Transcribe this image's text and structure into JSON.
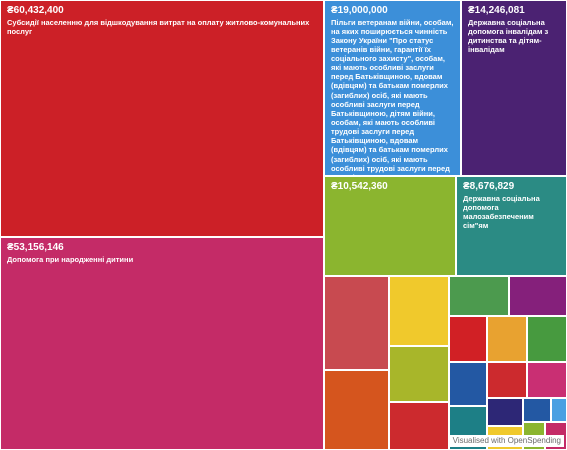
{
  "chart_data": {
    "type": "treemap",
    "nodes": [
      {
        "value_label": "₴60,432,400",
        "label": "Субсидії населенню для відшкодування витрат на оплату житлово-комунальних послуг",
        "color": "#cc2027"
      },
      {
        "value_label": "₴53,156,146",
        "label": "Допомога при народженні дитини",
        "color": "#c42b67"
      },
      {
        "value_label": "₴19,000,000",
        "label": "Пільги ветеранам війни, особам, на яких поширюється чинність Закону України \"Про статус ветеранів війни, гарантії їх соціального захисту\", особам, які мають особливі заслуги перед Батьківщиною, вдовам (вдівцям) та батькам померлих (загиблих) осіб, які мають особливі заслуги перед Батьківщиною, дітям війни, особам, які мають особливі трудові заслуги перед Батьківщиною, вдовам (вдівцям) та батькам померлих (загиблих) осіб, які мають особливі трудові заслуги перед Батьківщиною, жертвам нацистських переслідувань та реабілітованим громадянам, які стали інвалідами внаслідок репресій, або є пенсіонерами, на житлово-комунальні послуги",
        "color": "#3c8fd9"
      },
      {
        "value_label": "₴14,246,081",
        "label": "Державна соціальна допомога інвалідам з дитинства та дітям-інвалідам",
        "color": "#4b2272"
      },
      {
        "value_label": "₴10,542,360",
        "label": "",
        "color": "#8bb52f"
      },
      {
        "value_label": "₴8,676,829",
        "label": "Державна соціальна допомога малозабезпеченим сім\"ям",
        "color": "#2b8b84"
      },
      {
        "value_label": "",
        "label": "",
        "color": "#c84a50"
      },
      {
        "value_label": "",
        "label": "",
        "color": "#f0c92c"
      },
      {
        "value_label": "",
        "label": "",
        "color": "#4c9a4e"
      },
      {
        "value_label": "",
        "label": "",
        "color": "#85207b"
      },
      {
        "value_label": "",
        "label": "",
        "color": "#e8a230"
      },
      {
        "value_label": "",
        "label": "",
        "color": "#d12025"
      },
      {
        "value_label": "",
        "label": "",
        "color": "#479a3f"
      },
      {
        "value_label": "",
        "label": "",
        "color": "#c92f73"
      },
      {
        "value_label": "",
        "label": "",
        "color": "#d5551e"
      },
      {
        "value_label": "",
        "label": "",
        "color": "#a8b62a"
      },
      {
        "value_label": "",
        "label": "",
        "color": "#cc2a2e"
      },
      {
        "value_label": "",
        "label": "",
        "color": "#2358a3"
      },
      {
        "value_label": "",
        "label": "",
        "color": "#cc2a2e"
      },
      {
        "value_label": "",
        "label": "",
        "color": "#1d7f86"
      },
      {
        "value_label": "",
        "label": "",
        "color": "#2d2776"
      },
      {
        "value_label": "",
        "label": "",
        "color": "#2358a3"
      },
      {
        "value_label": "",
        "label": "",
        "color": "#4aa0e2"
      },
      {
        "value_label": "",
        "label": "",
        "color": "#8bb52f"
      },
      {
        "value_label": "",
        "label": "",
        "color": "#c42b67"
      },
      {
        "value_label": "",
        "label": "",
        "color": "#f0c92c"
      },
      {
        "value_label": "",
        "label": "",
        "color": "#479a3f"
      }
    ]
  },
  "attribution": "Visualised with OpenSpending"
}
